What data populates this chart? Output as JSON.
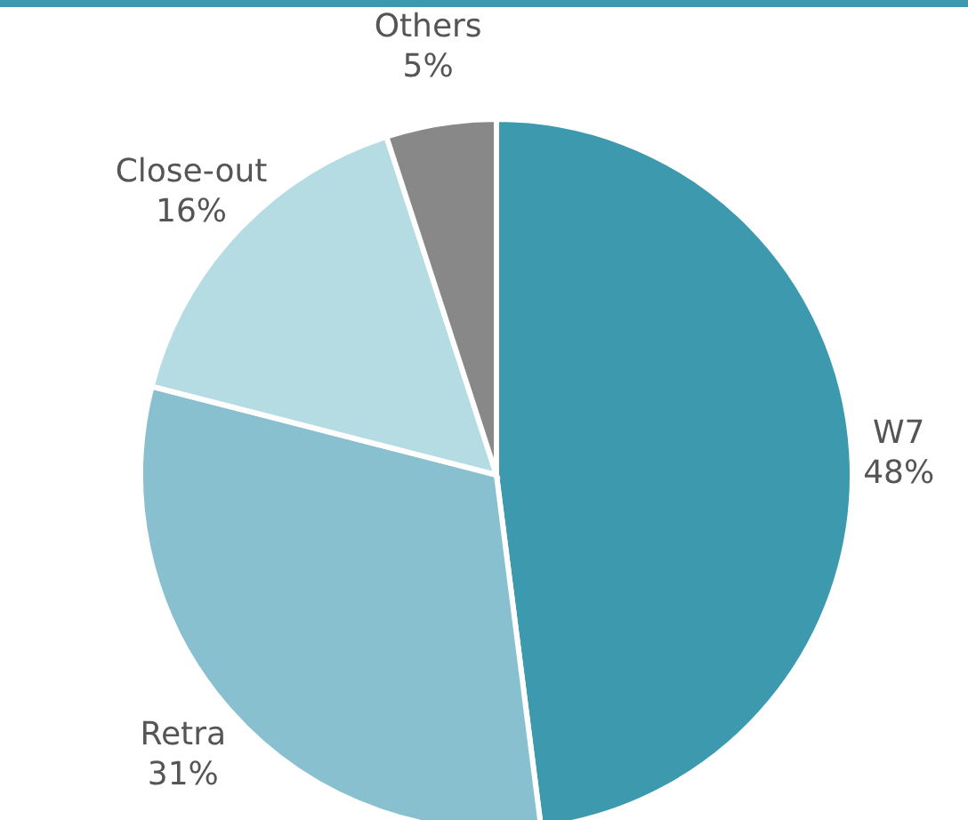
{
  "chart_data": {
    "type": "pie",
    "categories": [
      "W7",
      "Retra",
      "Close-out",
      "Others"
    ],
    "values": [
      48,
      31,
      16,
      5
    ],
    "colors": [
      "#3d9aae",
      "#88c0cf",
      "#b5dce3",
      "#888888"
    ],
    "value_labels": [
      "48%",
      "31%",
      "16%",
      "5%"
    ]
  }
}
